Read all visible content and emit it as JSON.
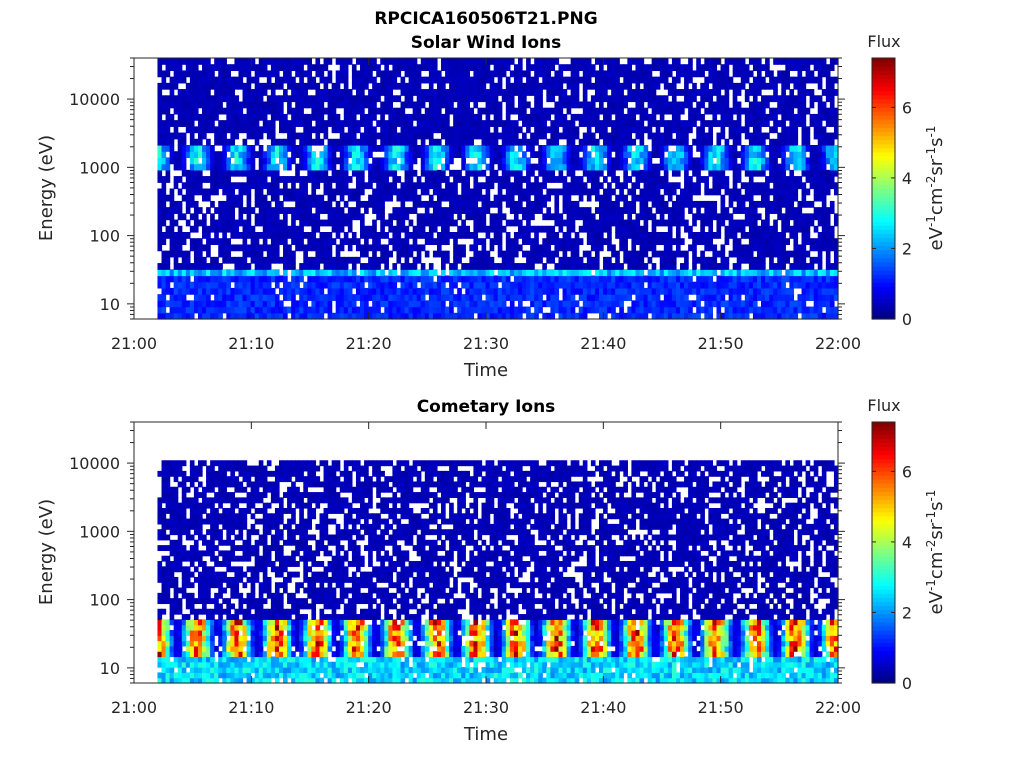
{
  "figure": {
    "title": "RPCICA160506T21.PNG"
  },
  "chart_data": [
    {
      "type": "heatmap",
      "title": "Solar Wind Ions",
      "xlabel": "Time",
      "ylabel": "Energy (eV)",
      "xticks": [
        "21:00",
        "21:10",
        "21:20",
        "21:30",
        "21:40",
        "21:50",
        "22:00"
      ],
      "xlim": [
        "21:00",
        "22:00"
      ],
      "data_start": "21:02",
      "yticks": [
        "10",
        "100",
        "1000",
        "10000"
      ],
      "ylim": [
        6,
        40000
      ],
      "yscale": "log",
      "colorbar": {
        "title": "Flux",
        "label": "eV-1cm-2sr-1s-1",
        "ticks": [
          "0",
          "2",
          "4",
          "6"
        ],
        "range": [
          0,
          7.4
        ],
        "colormap": "jet"
      },
      "features": [
        {
          "energy_eV": [
            1000,
            2000
          ],
          "flux": 2.6,
          "description": "periodic enhancements"
        },
        {
          "energy_eV": [
            25,
            35
          ],
          "flux": 2.3,
          "description": "persistent band"
        },
        {
          "energy_eV": [
            6,
            25
          ],
          "flux": 1.2
        }
      ],
      "background_flux": 0.4
    },
    {
      "type": "heatmap",
      "title": "Cometary Ions",
      "xlabel": "Time",
      "ylabel": "Energy (eV)",
      "xticks": [
        "21:00",
        "21:10",
        "21:20",
        "21:30",
        "21:40",
        "21:50",
        "22:00"
      ],
      "xlim": [
        "21:00",
        "22:00"
      ],
      "data_start": "21:02",
      "data_top_eV": 11000,
      "yticks": [
        "10",
        "100",
        "1000",
        "10000"
      ],
      "ylim": [
        6,
        40000
      ],
      "yscale": "log",
      "colorbar": {
        "title": "Flux",
        "label": "eV-1cm-2sr-1s-1",
        "ticks": [
          "0",
          "2",
          "4",
          "6"
        ],
        "range": [
          0,
          7.4
        ],
        "colormap": "jet"
      },
      "features": [
        {
          "energy_eV": [
            15,
            50
          ],
          "flux": 6.0,
          "description": "periodic peaks, ~3.4 min period"
        },
        {
          "energy_eV": [
            6,
            15
          ],
          "flux": 2.5
        }
      ],
      "background_flux": 0.4
    }
  ]
}
